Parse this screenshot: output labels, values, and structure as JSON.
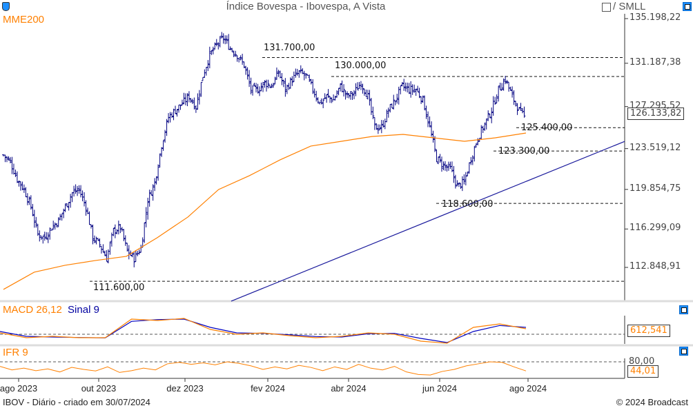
{
  "header": {
    "title": "Índice Bovespa - Ibovespa, A Vista",
    "compare_label": "/ SMLL"
  },
  "footer": {
    "left": "IBOV - Diário - criado em 30/07/2024",
    "right": "© 2024 Broadcast"
  },
  "colors": {
    "bars": "#000080",
    "ema": "#ff8000",
    "trend": "#1a1a9c",
    "macd": "#ff8000",
    "signal": "#0000c0",
    "ifr": "#ff8000"
  },
  "icons": [
    "shield-icon",
    "checkbox-icon",
    "expand-icon"
  ],
  "chart_data": [
    {
      "type": "ohlc",
      "indicator_label": "MME200",
      "ylim": [
        110500,
        136200
      ],
      "y_ticks": [
        "135.198,22",
        "131.187,38",
        "127.295,52",
        "123.519,12",
        "119.854,75",
        "116.299,09",
        "112.848,91"
      ],
      "y_tick_values": [
        135198.22,
        131187.38,
        127295.52,
        123519.12,
        119854.75,
        116299.09,
        112848.91
      ],
      "last_value": "126.133,82",
      "x_ticks": [
        "ago 2023",
        "out 2023",
        "dez 2023",
        "fev 2024",
        "abr 2024",
        "jun 2024",
        "ago 2024"
      ],
      "close": [
        122942,
        122323,
        120775,
        119847,
        118300,
        115824,
        115514,
        116443,
        117062,
        118300,
        119537,
        119847,
        118300,
        115514,
        114895,
        113657,
        116133,
        116443,
        114276,
        113657,
        114585,
        118918,
        120466,
        123870,
        126346,
        126965,
        127584,
        128203,
        127274,
        130060,
        131917,
        132845,
        133464,
        132536,
        131917,
        130988,
        128822,
        128822,
        129441,
        129132,
        130370,
        128822,
        129751,
        130370,
        130060,
        128822,
        127584,
        128203,
        127894,
        129132,
        128203,
        128513,
        129441,
        128203,
        125418,
        125418,
        126965,
        127894,
        129132,
        128822,
        128822,
        127894,
        125418,
        122632,
        122013,
        121704,
        120156,
        120466,
        122632,
        124489,
        125727,
        126965,
        128822,
        129751,
        128203,
        126965,
        126133
      ],
      "ema200": [
        110871,
        112419,
        113038,
        113471,
        113843,
        115514,
        117371,
        119847,
        121085,
        122509,
        123747,
        124180,
        124613,
        124799,
        124489,
        124180,
        124489,
        124923
      ],
      "levels": [
        {
          "label": "131.700,00",
          "value": 131700
        },
        {
          "label": "130.000,00",
          "value": 130000
        },
        {
          "label": "125.400,00",
          "value": 125400
        },
        {
          "label": "123.300,00",
          "value": 123300
        },
        {
          "label": "118.600,00",
          "value": 118600
        },
        {
          "label": "111.600,00",
          "value": 111600
        }
      ],
      "trendline": {
        "start": 109819,
        "end": 124168
      }
    },
    {
      "type": "line",
      "label": "MACD 26,12",
      "signal_label": "Sinal 9",
      "last_value": "612,541",
      "macd": [
        300,
        -750,
        -450,
        -750,
        -750,
        3300,
        3000,
        3450,
        1050,
        0,
        300,
        -300,
        -750,
        -450,
        300,
        0,
        -1500,
        -1950,
        1500,
        2250,
        1200
      ],
      "signal": [
        600,
        -450,
        -600,
        -700,
        -800,
        2800,
        3200,
        3300,
        1500,
        300,
        200,
        -100,
        -500,
        -600,
        100,
        200,
        -900,
        -1800,
        600,
        1900,
        1500
      ]
    },
    {
      "type": "line",
      "label": "IFR 9",
      "reference_label": "80,00",
      "last_value": "44,01",
      "ylim": [
        20,
        100
      ],
      "values": [
        62,
        48,
        55,
        45,
        52,
        40,
        58,
        50,
        44,
        60,
        38,
        45,
        55,
        48,
        72,
        78,
        70,
        76,
        68,
        80,
        74,
        64,
        50,
        60,
        52,
        66,
        58,
        45,
        60,
        50,
        70,
        55,
        48,
        62,
        40,
        30,
        28,
        42,
        50,
        64,
        72,
        80,
        78,
        60,
        44
      ]
    }
  ]
}
